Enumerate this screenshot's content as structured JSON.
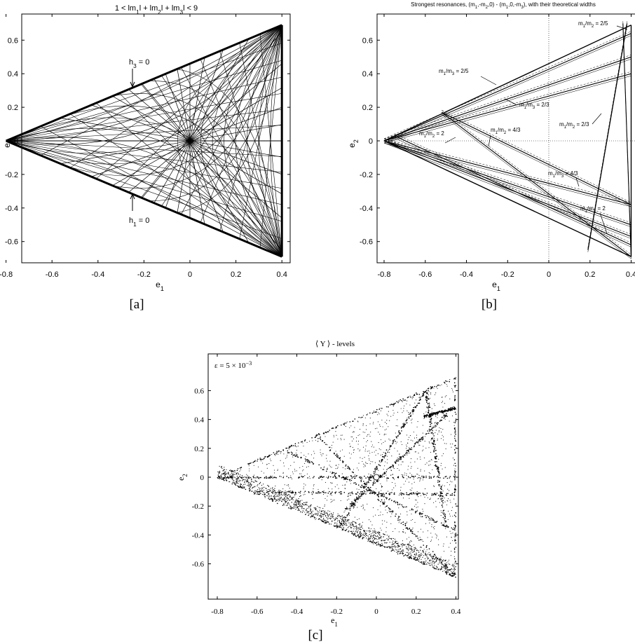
{
  "figure": {
    "panels": [
      {
        "id": "a",
        "title_parts": [
          "1 < lm",
          "1",
          "l + lm",
          "2",
          "l + lm",
          "3",
          "l < 9"
        ],
        "xlabel": [
          "e",
          "1"
        ],
        "ylabel": [
          "e",
          "2"
        ],
        "caption": "[a]",
        "annotations": [
          {
            "label": [
              "h",
              "3",
              " = 0"
            ]
          },
          {
            "label": [
              "h",
              "1",
              " = 0"
            ]
          }
        ]
      },
      {
        "id": "b",
        "title_parts": [
          "Strongest resonances, (m",
          "1",
          ",-m",
          "2",
          ",0) - (m",
          "1",
          ",0,-m",
          "3",
          "), with their theoretical widths"
        ],
        "xlabel": [
          "e",
          "1"
        ],
        "ylabel": [
          "e",
          "2"
        ],
        "caption": "[b]",
        "annotations": [
          {
            "label": [
              "m",
              "1",
              "/m",
              "3",
              " = 2/5"
            ]
          },
          {
            "label": [
              "m",
              "1",
              "/m",
              "2",
              " = 2/5"
            ]
          },
          {
            "label": [
              "m",
              "1",
              "/m",
              "3",
              " = 2/3"
            ]
          },
          {
            "label": [
              "m",
              "1",
              "/m",
              "2",
              " = 2/3"
            ]
          },
          {
            "label": [
              "m",
              "1",
              "/m",
              "2",
              " = 4/3"
            ]
          },
          {
            "label": [
              "m",
              "1",
              "/m",
              "2",
              " = 2"
            ]
          },
          {
            "label": [
              "m",
              "1",
              "/m",
              "3",
              " = 4/3"
            ]
          },
          {
            "label": [
              "m",
              "1",
              "/m",
              "3",
              " = 2"
            ]
          }
        ]
      },
      {
        "id": "c",
        "title": "⟨ Y ⟩ - levels",
        "xlabel": [
          "e",
          "1"
        ],
        "ylabel": [
          "e",
          "2"
        ],
        "caption": "[c]",
        "annotation": {
          "label": [
            "ε = 5 × 10",
            "−3"
          ]
        }
      }
    ],
    "xticks": [
      "-0.8",
      "-0.6",
      "-0.4",
      "-0.2",
      "0",
      "0.2",
      "0.4"
    ],
    "yticks": [
      "0.6",
      "0.4",
      "0.2",
      "0",
      "-0.2",
      "-0.4",
      "-0.6"
    ]
  }
}
